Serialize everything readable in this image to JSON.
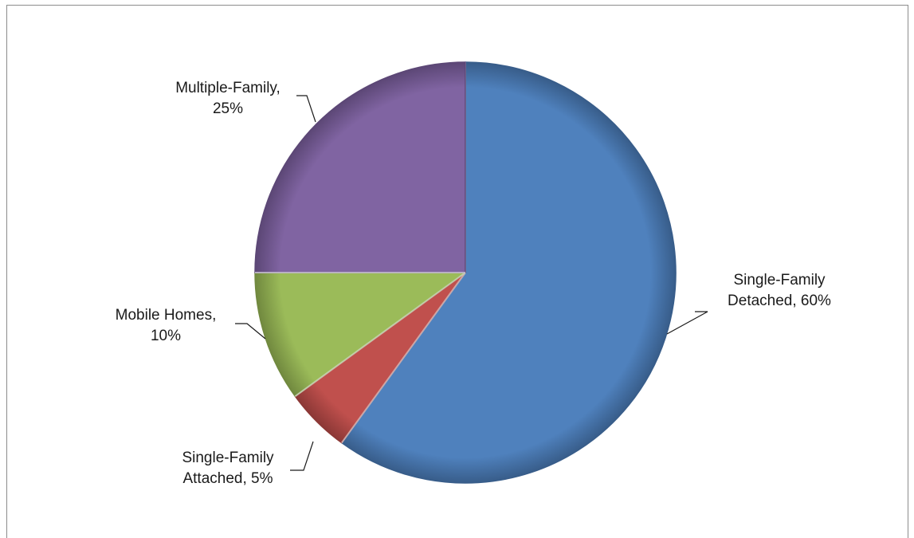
{
  "chart_data": {
    "type": "pie",
    "title": "",
    "slices": [
      {
        "label_line1": "Single-Family",
        "label_line2": "Detached, 60%",
        "value": 60,
        "color": "#4f81bd",
        "edge": "#385d8a"
      },
      {
        "label_line1": "Single-Family",
        "label_line2": "Attached, 5%",
        "value": 5,
        "color": "#c0504d",
        "edge": "#8c3836"
      },
      {
        "label_line1": "Mobile Homes,",
        "label_line2": "10%",
        "value": 10,
        "color": "#9bbb59",
        "edge": "#71893f"
      },
      {
        "label_line1": "Multiple-Family,",
        "label_line2": "25%",
        "value": 25,
        "color": "#8064a2",
        "edge": "#5c4776"
      }
    ],
    "start_angle_deg": 0,
    "direction": "clockwise",
    "legend": "none",
    "data_labels": "outside-with-leader-lines"
  }
}
